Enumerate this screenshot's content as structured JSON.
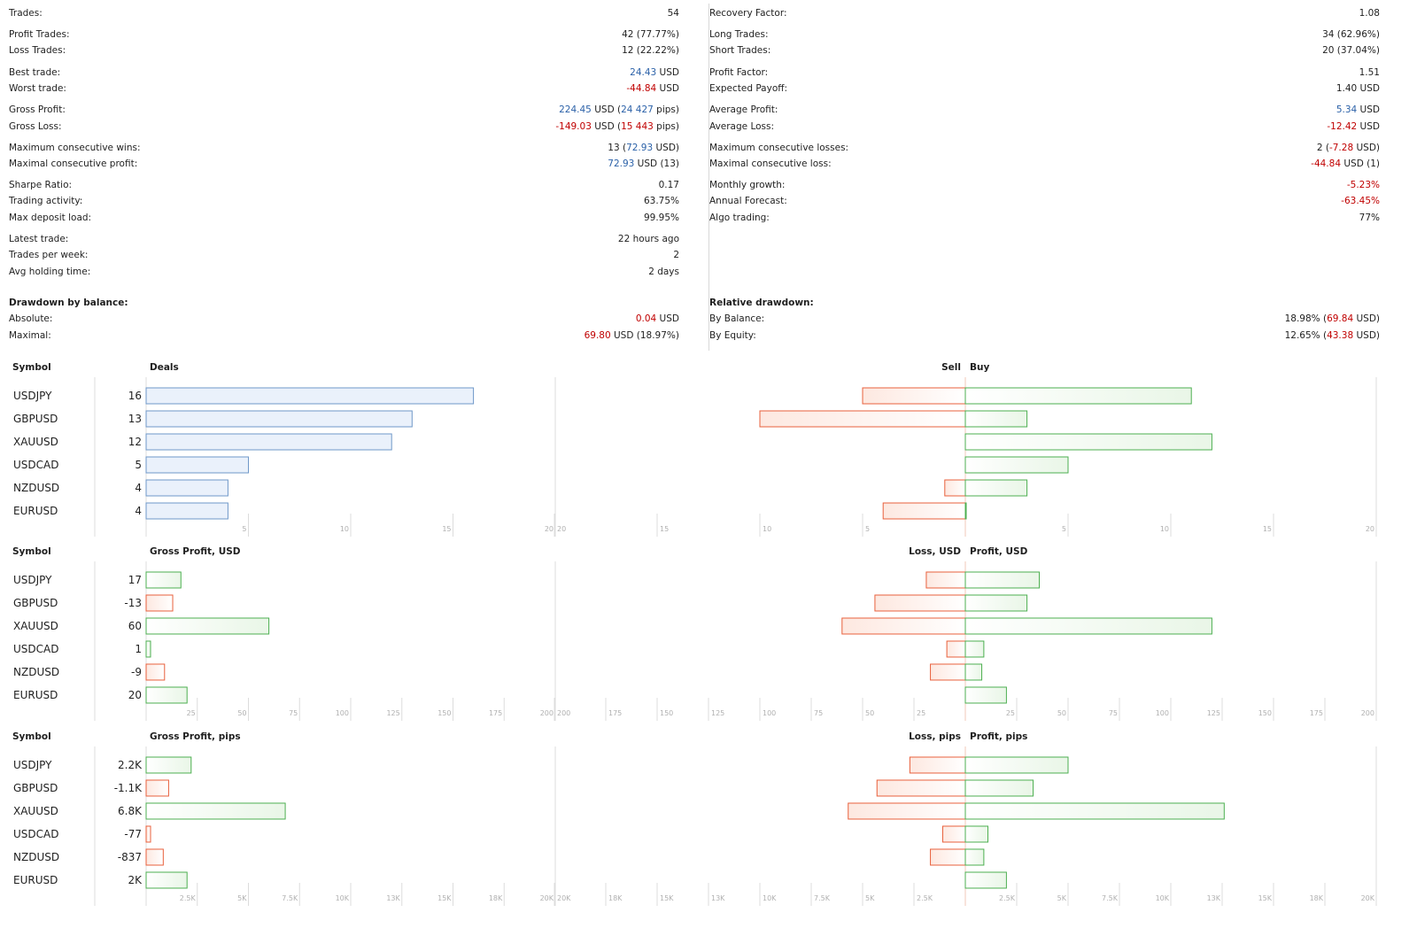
{
  "stats_left": [
    {
      "label": "Trades:",
      "value": [
        {
          "t": "54"
        }
      ]
    },
    {
      "label": "Profit Trades:",
      "value": [
        {
          "t": "42 (77.77%)"
        }
      ]
    },
    {
      "label": "Loss Trades:",
      "value": [
        {
          "t": "12 (22.22%)"
        }
      ]
    },
    {
      "label": "Best trade:",
      "value": [
        {
          "t": "24.43",
          "c": "blue"
        },
        {
          "t": " USD"
        }
      ]
    },
    {
      "label": "Worst trade:",
      "value": [
        {
          "t": "-44.84",
          "c": "red"
        },
        {
          "t": " USD"
        }
      ]
    },
    {
      "label": "Gross Profit:",
      "value": [
        {
          "t": "224.45",
          "c": "blue"
        },
        {
          "t": " USD ("
        },
        {
          "t": "24 427",
          "c": "blue"
        },
        {
          "t": " pips)"
        }
      ]
    },
    {
      "label": "Gross Loss:",
      "value": [
        {
          "t": "-149.03",
          "c": "red"
        },
        {
          "t": " USD ("
        },
        {
          "t": "15 443",
          "c": "red"
        },
        {
          "t": " pips)"
        }
      ]
    },
    {
      "label": "Maximum consecutive wins:",
      "value": [
        {
          "t": "13 ("
        },
        {
          "t": "72.93",
          "c": "blue"
        },
        {
          "t": " USD)"
        }
      ]
    },
    {
      "label": "Maximal consecutive profit:",
      "value": [
        {
          "t": "72.93",
          "c": "blue"
        },
        {
          "t": " USD (13)"
        }
      ]
    },
    {
      "label": "Sharpe Ratio:",
      "value": [
        {
          "t": "0.17"
        }
      ]
    },
    {
      "label": "Trading activity:",
      "value": [
        {
          "t": "63.75%"
        }
      ]
    },
    {
      "label": "Max deposit load:",
      "value": [
        {
          "t": "99.95%"
        }
      ]
    },
    {
      "label": "Latest trade:",
      "value": [
        {
          "t": "22 hours ago"
        }
      ]
    },
    {
      "label": "Trades per week:",
      "value": [
        {
          "t": "2"
        }
      ]
    },
    {
      "label": "Avg holding time:",
      "value": [
        {
          "t": "2 days"
        }
      ]
    }
  ],
  "stats_right": [
    {
      "label": "Recovery Factor:",
      "value": [
        {
          "t": "1.08"
        }
      ]
    },
    {
      "label": "Long Trades:",
      "value": [
        {
          "t": "34 (62.96%)"
        }
      ]
    },
    {
      "label": "Short Trades:",
      "value": [
        {
          "t": "20 (37.04%)"
        }
      ]
    },
    {
      "label": "Profit Factor:",
      "value": [
        {
          "t": "1.51"
        }
      ]
    },
    {
      "label": "Expected Payoff:",
      "value": [
        {
          "t": "1.40 USD"
        }
      ]
    },
    {
      "label": "Average Profit:",
      "value": [
        {
          "t": "5.34",
          "c": "blue"
        },
        {
          "t": " USD"
        }
      ]
    },
    {
      "label": "Average Loss:",
      "value": [
        {
          "t": "-12.42",
          "c": "red"
        },
        {
          "t": " USD"
        }
      ]
    },
    {
      "label": "Maximum consecutive losses:",
      "value": [
        {
          "t": "2 ("
        },
        {
          "t": "-7.28",
          "c": "red"
        },
        {
          "t": " USD)"
        }
      ]
    },
    {
      "label": "Maximal consecutive loss:",
      "value": [
        {
          "t": "-44.84",
          "c": "red"
        },
        {
          "t": " USD (1)"
        }
      ]
    },
    {
      "label": "Monthly growth:",
      "value": [
        {
          "t": "-5.23%",
          "c": "red"
        }
      ]
    },
    {
      "label": "Annual Forecast:",
      "value": [
        {
          "t": "-63.45%",
          "c": "red"
        }
      ]
    },
    {
      "label": "Algo trading:",
      "value": [
        {
          "t": "77%"
        }
      ]
    }
  ],
  "drawdown_left": {
    "heading": "Drawdown by balance:",
    "rows": [
      {
        "label": "Absolute:",
        "value": [
          {
            "t": "0.04",
            "c": "red"
          },
          {
            "t": " USD"
          }
        ]
      },
      {
        "label": "Maximal:",
        "value": [
          {
            "t": "69.80",
            "c": "red"
          },
          {
            "t": " USD (18.97%)"
          }
        ]
      }
    ]
  },
  "drawdown_right": {
    "heading": "Relative drawdown:",
    "rows": [
      {
        "label": "By Balance:",
        "value": [
          {
            "t": "18.98% ("
          },
          {
            "t": "69.84",
            "c": "red"
          },
          {
            "t": " USD)"
          }
        ]
      },
      {
        "label": "By Equity:",
        "value": [
          {
            "t": "12.65% ("
          },
          {
            "t": "43.38",
            "c": "red"
          },
          {
            "t": " USD)"
          }
        ]
      }
    ]
  },
  "colors": {
    "blue_bar_fill": "#eaf1fb",
    "blue_bar_stroke": "#6f98c8",
    "green_stroke": "#4caf50",
    "green_fill": "#e9f6e7",
    "red_stroke": "#e8603c",
    "red_fill": "#fde8e0",
    "grid": "#dcdcdc"
  },
  "chart_data": [
    {
      "type": "bar",
      "title": "Deals",
      "symbol_header": "Symbol",
      "left_header": "Deals",
      "sell_header": "Sell",
      "buy_header": "Buy",
      "categories": [
        "USDJPY",
        "GBPUSD",
        "XAUUSD",
        "USDCAD",
        "NZDUSD",
        "EURUSD"
      ],
      "value_labels": [
        "16",
        "13",
        "12",
        "5",
        "4",
        "4"
      ],
      "values": [
        16,
        13,
        12,
        5,
        4,
        4
      ],
      "left_max": 20,
      "left_ticks": [
        "5",
        "10",
        "15",
        "20"
      ],
      "sell_values": [
        5,
        10,
        0,
        0,
        1,
        4
      ],
      "buy_values": [
        11,
        3,
        12,
        5,
        3,
        0
      ],
      "right_max": 20,
      "right_ticks_left": [
        "20",
        "15",
        "10",
        "5"
      ],
      "right_ticks_right": [
        "5",
        "10",
        "15",
        "20"
      ]
    },
    {
      "type": "bar",
      "title": "Gross Profit, USD",
      "symbol_header": "Symbol",
      "left_header": "Gross Profit, USD",
      "sell_header": "Loss, USD",
      "buy_header": "Profit, USD",
      "categories": [
        "USDJPY",
        "GBPUSD",
        "XAUUSD",
        "USDCAD",
        "NZDUSD",
        "EURUSD"
      ],
      "value_labels": [
        "17",
        "-13",
        "60",
        "1",
        "-9",
        "20"
      ],
      "values": [
        17,
        -13,
        60,
        1,
        -9,
        20
      ],
      "left_max": 200,
      "left_ticks": [
        "25",
        "50",
        "75",
        "100",
        "125",
        "150",
        "175",
        "200"
      ],
      "sell_values": [
        19,
        44,
        60,
        9,
        17,
        0
      ],
      "buy_values": [
        36,
        30,
        120,
        9,
        8,
        20
      ],
      "right_max": 200,
      "right_ticks_left": [
        "200",
        "175",
        "150",
        "125",
        "100",
        "75",
        "50",
        "25"
      ],
      "right_ticks_right": [
        "25",
        "50",
        "75",
        "100",
        "125",
        "150",
        "175",
        "200"
      ]
    },
    {
      "type": "bar",
      "title": "Gross Profit, pips",
      "symbol_header": "Symbol",
      "left_header": "Gross Profit, pips",
      "sell_header": "Loss, pips",
      "buy_header": "Profit, pips",
      "categories": [
        "USDJPY",
        "GBPUSD",
        "XAUUSD",
        "USDCAD",
        "NZDUSD",
        "EURUSD"
      ],
      "value_labels": [
        "2.2K",
        "-1.1K",
        "6.8K",
        "-77",
        "-837",
        "2K"
      ],
      "values": [
        2200,
        -1100,
        6800,
        -77,
        -837,
        2000
      ],
      "left_max": 20000,
      "left_ticks": [
        "2.5K",
        "5K",
        "7.5K",
        "10K",
        "13K",
        "15K",
        "18K",
        "20K"
      ],
      "sell_values": [
        2700,
        4300,
        5700,
        1100,
        1700,
        0
      ],
      "buy_values": [
        5000,
        3300,
        12600,
        1100,
        900,
        2000
      ],
      "right_max": 20000,
      "right_ticks_left": [
        "20K",
        "18K",
        "15K",
        "13K",
        "10K",
        "7.5K",
        "5K",
        "2.5K"
      ],
      "right_ticks_right": [
        "2.5K",
        "5K",
        "7.5K",
        "10K",
        "13K",
        "15K",
        "18K",
        "20K"
      ]
    }
  ]
}
